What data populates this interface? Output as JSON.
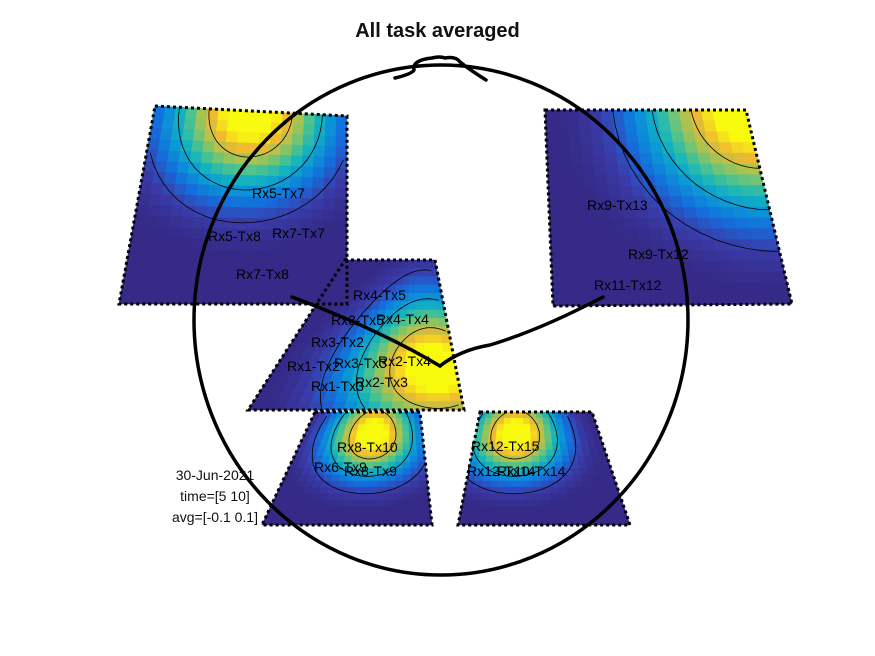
{
  "chart_data": {
    "type": "heatmap",
    "title": "All task averaged",
    "date": "30-Jun-2021",
    "time_label": "time=[5 10]",
    "avg_label": "avg=[-0.1 0.1]",
    "clim": [
      -0.1,
      0.1
    ],
    "colormap": "parula",
    "colorbar": false,
    "regions": [
      {
        "id": "left-frontal",
        "channels": [
          "Rx5-Tx7",
          "Rx5-Tx8",
          "Rx7-Tx7",
          "Rx7-Tx8"
        ],
        "hot": [
          0.5,
          0.0
        ],
        "spread": 0.62
      },
      {
        "id": "right-frontal",
        "channels": [
          "Rx9-Tx13",
          "Rx9-Tx12",
          "Rx11-Tx12"
        ],
        "hot": [
          1.0,
          0.0
        ],
        "spread": 0.78
      },
      {
        "id": "central",
        "channels": [
          "Rx4-Tx5",
          "Rx3-Tx5",
          "Rx4-Tx4",
          "Rx3-Tx2",
          "Rx1-Tx2",
          "Rx3-Tx3",
          "Rx2-Tx4",
          "Rx1-Tx3",
          "Rx2-Tx3"
        ],
        "hot": [
          0.88,
          0.72
        ],
        "spread": 0.7
      },
      {
        "id": "left-occipital",
        "channels": [
          "Rx8-Tx10",
          "Rx6-Tx9",
          "Rx8-Tx9"
        ],
        "hot": [
          0.58,
          0.2
        ],
        "spread": 0.56
      },
      {
        "id": "right-occipital",
        "channels": [
          "Rx12-Tx15",
          "Rx12-Tx14",
          "Rx10-Tx14"
        ],
        "hot": [
          0.32,
          0.2
        ],
        "spread": 0.56
      }
    ]
  }
}
